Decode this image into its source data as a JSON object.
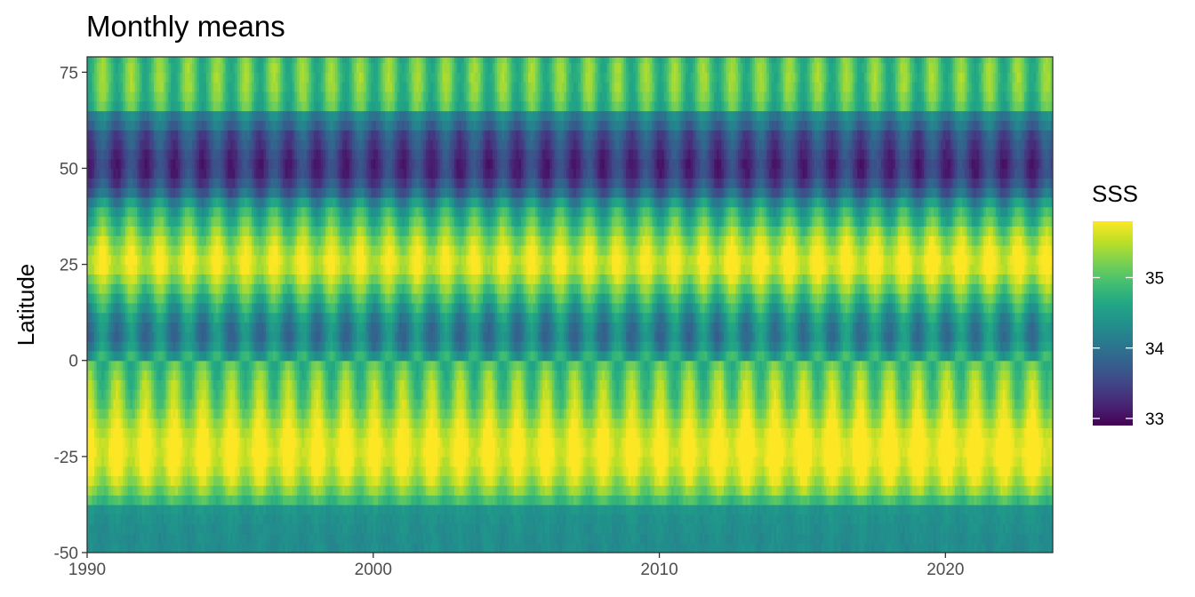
{
  "chart_data": {
    "type": "heatmap",
    "title": "Monthly means",
    "xlabel": "",
    "ylabel": "Latitude",
    "xlim": [
      1990,
      2023.75
    ],
    "ylim": [
      -50,
      79
    ],
    "x_ticks": [
      1990,
      2000,
      2010,
      2020
    ],
    "y_ticks": [
      -50,
      -25,
      0,
      25,
      50,
      75
    ],
    "x_tick_labels": [
      "1990",
      "2000",
      "2010",
      "2020"
    ],
    "y_tick_labels": [
      "-50",
      "-25",
      "0",
      "25",
      "50",
      "75"
    ],
    "time_resolution": "monthly",
    "colorscale": "viridis",
    "legend": {
      "title": "SSS",
      "position": "right",
      "range": [
        32.9,
        35.8
      ],
      "breaks": [
        33,
        34,
        35
      ],
      "labels": [
        "33",
        "34",
        "35"
      ]
    },
    "latitude_profile": {
      "lat": [
        -50,
        -46,
        -41,
        -38.5,
        -37.5,
        -35,
        -30,
        -25,
        -20,
        -15,
        -10,
        -5,
        -1,
        1,
        5,
        10,
        15,
        20,
        25,
        30,
        35,
        40,
        44,
        48,
        52,
        56,
        60,
        62,
        65,
        66,
        70,
        75,
        79
      ],
      "mean_sss": [
        34.3,
        34.3,
        34.35,
        34.4,
        34.7,
        35.1,
        35.55,
        35.75,
        35.7,
        35.45,
        35.2,
        35.1,
        34.9,
        34.6,
        34.1,
        34.2,
        34.7,
        35.25,
        35.7,
        35.45,
        35.0,
        34.55,
        33.8,
        33.4,
        33.35,
        33.55,
        33.7,
        34.1,
        34.2,
        34.85,
        35.0,
        35.05,
        34.95
      ],
      "seasonal_amplitude": [
        0.05,
        0.05,
        0.05,
        0.05,
        0.1,
        0.2,
        0.25,
        0.2,
        0.2,
        0.3,
        0.4,
        0.4,
        0.3,
        0.3,
        0.35,
        0.35,
        0.35,
        0.3,
        0.2,
        0.3,
        0.35,
        0.35,
        0.3,
        0.3,
        0.3,
        0.3,
        0.3,
        0.25,
        0.2,
        0.35,
        0.4,
        0.4,
        0.4
      ]
    }
  }
}
